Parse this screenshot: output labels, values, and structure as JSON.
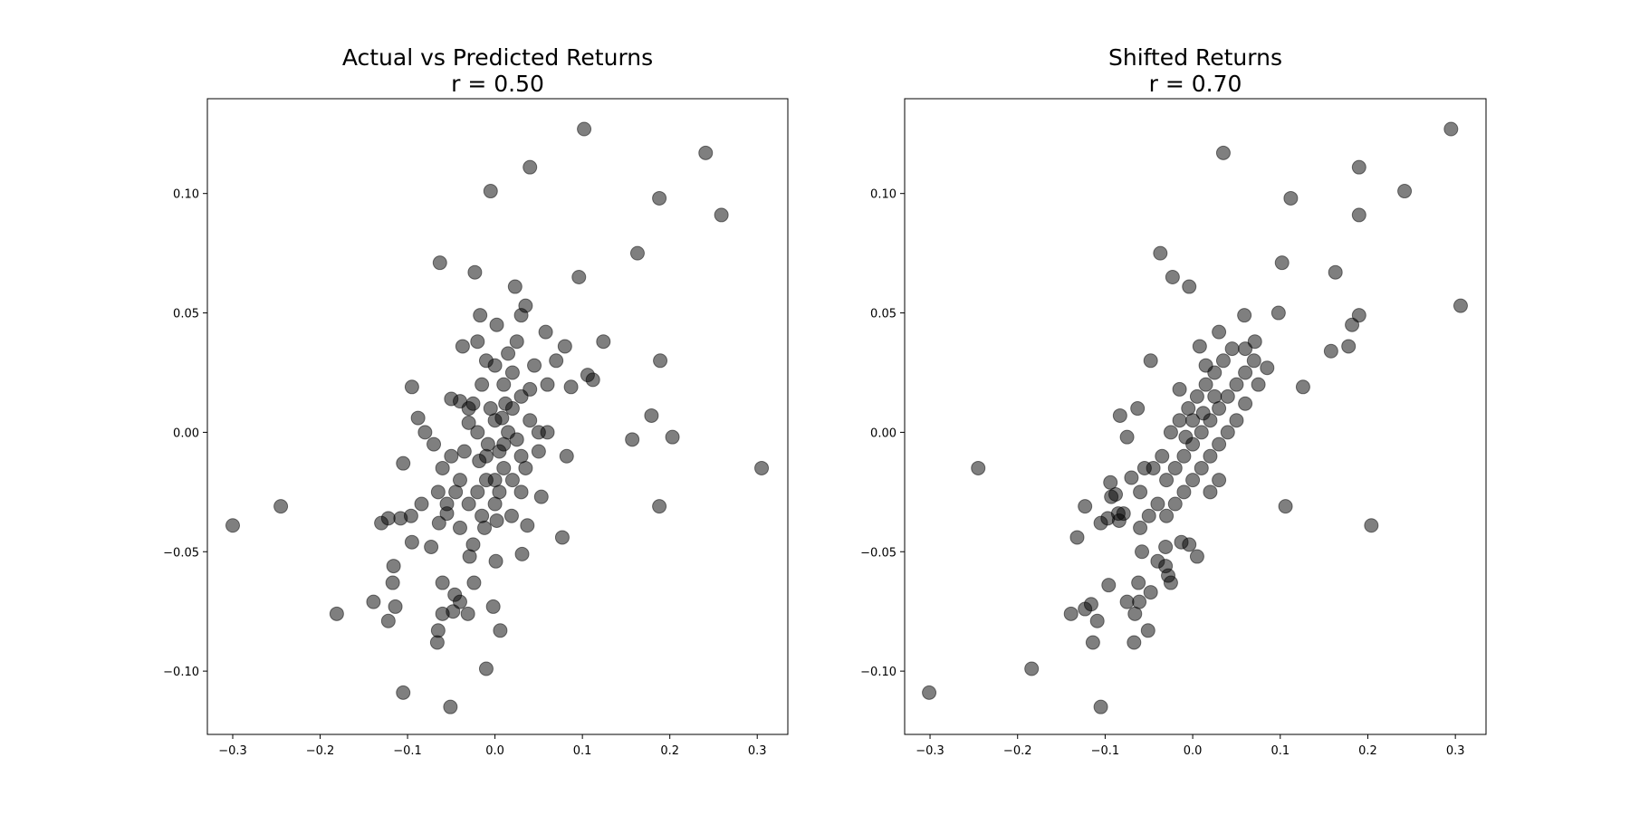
{
  "chart_data": [
    {
      "type": "scatter",
      "title": "Actual vs Predicted Returns",
      "subtitle": "r = 0.50",
      "color": "#000000",
      "alpha": 0.5,
      "x": [
        0.102,
        0.241,
        0.04,
        -0.005,
        0.188,
        0.259,
        -0.063,
        0.163,
        -0.023,
        0.096,
        0.023,
        0.035,
        -0.017,
        0.002,
        0.03,
        0.058,
        0.124,
        0.08,
        -0.037,
        0.189,
        0.106,
        0.112,
        0.087,
        -0.095,
        -0.088,
        -0.08,
        -0.105,
        0.157,
        0.179,
        0.203,
        0.305,
        0.082,
        0.188,
        -0.3,
        -0.245,
        -0.181,
        -0.139,
        -0.13,
        -0.122,
        -0.108,
        -0.096,
        -0.084,
        -0.095,
        -0.073,
        -0.064,
        -0.116,
        -0.117,
        -0.114,
        -0.122,
        -0.06,
        -0.046,
        -0.04,
        -0.06,
        -0.048,
        -0.065,
        -0.066,
        -0.031,
        -0.002,
        0.006,
        -0.024,
        -0.01,
        -0.105,
        -0.051,
        0.001,
        0.031,
        0.077,
        0.037,
        0.053,
        -0.025,
        -0.029,
        -0.055,
        -0.04,
        -0.012,
        0.002,
        0.019,
        -0.03,
        -0.02,
        -0.01,
        0.0,
        0.01,
        0.02,
        0.03,
        -0.04,
        -0.05,
        0.0,
        0.01,
        0.02,
        -0.01,
        0.0,
        0.04,
        0.05,
        0.06,
        0.05,
        -0.06,
        -0.07,
        -0.04,
        -0.03,
        -0.02,
        -0.01,
        0.0,
        0.01,
        0.02,
        0.03,
        0.03,
        0.04,
        -0.015,
        -0.025,
        0.015,
        0.025,
        -0.005,
        0.005,
        -0.035,
        -0.045,
        -0.03,
        -0.015,
        0.005,
        0.015,
        0.025,
        0.045,
        0.06,
        0.07,
        -0.02,
        -0.05,
        -0.065,
        -0.055,
        0.035,
        0.012,
        -0.008,
        0.008,
        -0.018
      ],
      "y": [
        0.127,
        0.117,
        0.111,
        0.101,
        0.098,
        0.091,
        0.071,
        0.075,
        0.067,
        0.065,
        0.061,
        0.053,
        0.049,
        0.045,
        0.049,
        0.042,
        0.038,
        0.036,
        0.036,
        0.03,
        0.024,
        0.022,
        0.019,
        0.019,
        0.006,
        0.0,
        -0.013,
        -0.003,
        0.007,
        -0.002,
        -0.015,
        -0.01,
        -0.031,
        -0.039,
        -0.031,
        -0.076,
        -0.071,
        -0.038,
        -0.036,
        -0.036,
        -0.035,
        -0.03,
        -0.046,
        -0.048,
        -0.038,
        -0.056,
        -0.063,
        -0.073,
        -0.079,
        -0.063,
        -0.068,
        -0.071,
        -0.076,
        -0.075,
        -0.083,
        -0.088,
        -0.076,
        -0.073,
        -0.083,
        -0.063,
        -0.099,
        -0.109,
        -0.115,
        -0.054,
        -0.051,
        -0.044,
        -0.039,
        -0.027,
        -0.047,
        -0.052,
        -0.034,
        -0.04,
        -0.04,
        -0.037,
        -0.035,
        0.01,
        0.0,
        -0.01,
        0.005,
        -0.005,
        0.01,
        -0.01,
        -0.02,
        -0.01,
        -0.02,
        0.02,
        0.025,
        0.03,
        0.028,
        0.005,
        0.0,
        0.0,
        -0.008,
        -0.015,
        -0.005,
        0.013,
        0.004,
        -0.025,
        -0.02,
        -0.03,
        -0.015,
        -0.02,
        -0.025,
        0.015,
        0.018,
        0.02,
        0.012,
        0.0,
        -0.003,
        0.01,
        -0.008,
        -0.008,
        -0.025,
        -0.03,
        -0.035,
        -0.025,
        0.033,
        0.038,
        0.028,
        0.02,
        0.03,
        0.038,
        0.014,
        -0.025,
        -0.03,
        -0.015,
        0.012,
        -0.005,
        0.006,
        -0.012
      ],
      "xlim": [
        -0.329,
        0.335
      ],
      "ylim": [
        -0.1265,
        0.1397
      ],
      "xticks": [
        {
          "value": -0.3,
          "label": "−0.3"
        },
        {
          "value": -0.2,
          "label": "−0.2"
        },
        {
          "value": -0.1,
          "label": "−0.1"
        },
        {
          "value": 0,
          "label": "0.0"
        },
        0.1,
        0.2,
        0.3
      ],
      "yticks": [
        {
          "value": -0.1,
          "label": "−0.10"
        },
        {
          "value": -0.05,
          "label": "−0.05"
        },
        {
          "value": 0,
          "label": "0.00"
        },
        0.05,
        {
          "value": 0.1,
          "label": "0.10"
        }
      ]
    },
    {
      "type": "scatter",
      "title": "Shifted Returns",
      "subtitle": "r = 0.70",
      "color": "#000000",
      "alpha": 0.5,
      "x": [
        0.295,
        0.035,
        0.19,
        0.112,
        0.242,
        0.19,
        0.102,
        -0.037,
        0.163,
        -0.023,
        -0.004,
        0.306,
        0.19,
        0.098,
        0.182,
        0.059,
        0.178,
        0.158,
        0.126,
        0.03,
        0.071,
        -0.048,
        -0.245,
        0.106,
        0.204,
        -0.123,
        -0.132,
        -0.096,
        -0.139,
        -0.123,
        -0.116,
        -0.114,
        -0.109,
        -0.184,
        -0.301,
        -0.105,
        -0.067,
        -0.051,
        -0.066,
        -0.075,
        -0.061,
        -0.062,
        -0.048,
        -0.058,
        -0.025,
        -0.028,
        -0.031,
        -0.031,
        -0.04,
        0.005,
        -0.004,
        -0.013,
        -0.105,
        -0.097,
        -0.085,
        -0.079,
        -0.084,
        -0.093,
        -0.088,
        -0.094,
        -0.07,
        -0.06,
        -0.075,
        -0.083,
        -0.063,
        -0.04,
        -0.03,
        -0.02,
        -0.01,
        0.0,
        0.01,
        0.02,
        0.03,
        0.04,
        0.05,
        0.06,
        0.07,
        -0.05,
        -0.035,
        -0.025,
        -0.015,
        -0.005,
        0.005,
        0.015,
        0.025,
        0.035,
        -0.045,
        -0.02,
        -0.01,
        0.0,
        0.01,
        0.02,
        0.03,
        0.04,
        0.05,
        0.06,
        0.075,
        0.085,
        -0.03,
        0.0,
        0.012,
        -0.008,
        0.025,
        0.045,
        0.06,
        0.02,
        0.03,
        -0.06,
        -0.055,
        0.015,
        -0.015,
        0.008
      ],
      "y": [
        0.127,
        0.117,
        0.111,
        0.098,
        0.101,
        0.091,
        0.071,
        0.075,
        0.067,
        0.065,
        0.061,
        0.053,
        0.049,
        0.05,
        0.045,
        0.049,
        0.036,
        0.034,
        0.019,
        0.042,
        0.038,
        0.03,
        -0.015,
        -0.031,
        -0.039,
        -0.031,
        -0.044,
        -0.064,
        -0.076,
        -0.074,
        -0.072,
        -0.088,
        -0.079,
        -0.099,
        -0.109,
        -0.115,
        -0.088,
        -0.083,
        -0.076,
        -0.071,
        -0.071,
        -0.063,
        -0.067,
        -0.05,
        -0.063,
        -0.06,
        -0.056,
        -0.048,
        -0.054,
        -0.052,
        -0.047,
        -0.046,
        -0.038,
        -0.036,
        -0.034,
        -0.034,
        -0.037,
        -0.027,
        -0.026,
        -0.021,
        -0.019,
        -0.04,
        -0.002,
        0.007,
        0.01,
        -0.03,
        -0.02,
        -0.015,
        -0.01,
        -0.005,
        0.0,
        0.005,
        0.01,
        0.015,
        0.02,
        0.025,
        0.03,
        -0.035,
        -0.01,
        0.0,
        0.005,
        0.01,
        0.015,
        0.02,
        0.025,
        0.03,
        -0.015,
        -0.03,
        -0.025,
        -0.02,
        -0.015,
        -0.01,
        -0.005,
        0.0,
        0.005,
        0.012,
        0.02,
        0.027,
        -0.035,
        0.005,
        0.008,
        -0.002,
        0.015,
        0.035,
        0.035,
        -0.025,
        -0.02,
        -0.025,
        -0.015,
        0.028,
        0.018,
        0.036
      ],
      "xlim": [
        -0.329,
        0.335
      ],
      "ylim": [
        -0.1265,
        0.1397
      ],
      "xticks": [
        {
          "value": -0.3,
          "label": "−0.3"
        },
        {
          "value": -0.2,
          "label": "−0.2"
        },
        {
          "value": -0.1,
          "label": "−0.1"
        },
        {
          "value": 0,
          "label": "0.0"
        },
        0.1,
        0.2,
        0.3
      ],
      "yticks": [
        {
          "value": -0.1,
          "label": "−0.10"
        },
        {
          "value": -0.05,
          "label": "−0.05"
        },
        {
          "value": 0,
          "label": "0.00"
        },
        0.05,
        {
          "value": 0.1,
          "label": "0.10"
        }
      ]
    }
  ]
}
